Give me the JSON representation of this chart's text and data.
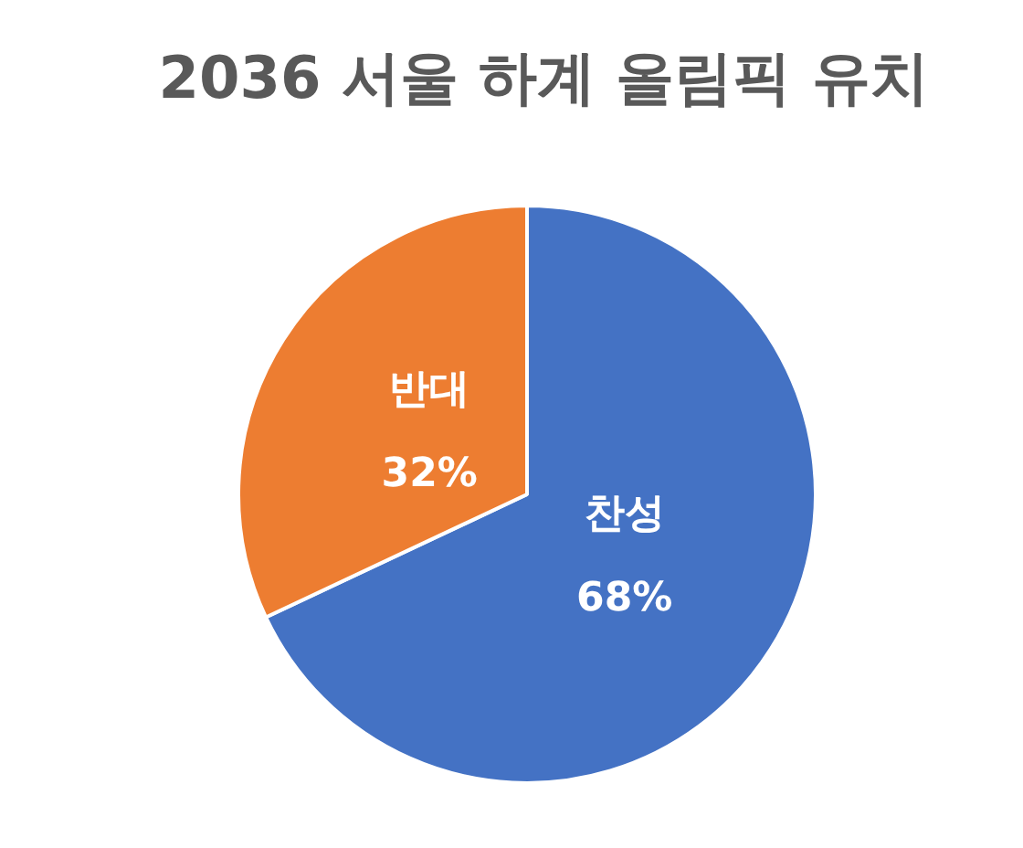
{
  "chart_data": {
    "type": "pie",
    "title": "2036 서울 하계 올림픽 유치",
    "categories": [
      "찬성",
      "반대"
    ],
    "values": [
      68,
      32
    ],
    "colors": [
      "#4472c4",
      "#ed7d31"
    ],
    "value_labels": [
      "68%",
      "32%"
    ]
  }
}
